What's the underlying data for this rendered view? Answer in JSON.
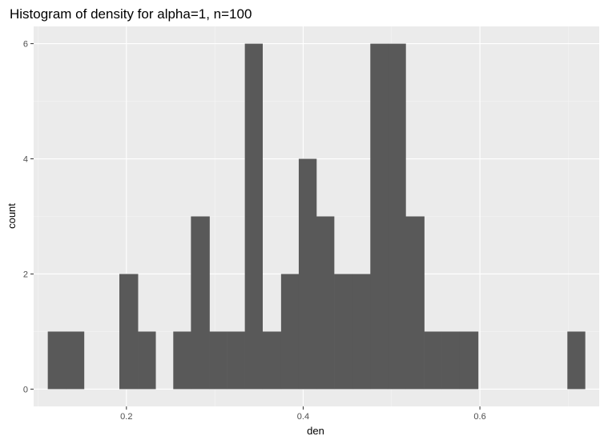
{
  "chart_data": {
    "type": "bar",
    "title": "Histogram of density for alpha=1, n=100",
    "xlabel": "den",
    "ylabel": "count",
    "xlim": [
      0.095,
      0.735
    ],
    "ylim": [
      -0.3,
      6.3
    ],
    "x_ticks": [
      0.2,
      0.4,
      0.6
    ],
    "x_tick_labels": [
      "0.2",
      "0.4",
      "0.6"
    ],
    "y_ticks": [
      0,
      2,
      4,
      6
    ],
    "y_tick_labels": [
      "0",
      "2",
      "4",
      "6"
    ],
    "grid": true,
    "bins": [
      {
        "x0": 0.111,
        "x1": 0.132,
        "count": 1
      },
      {
        "x0": 0.132,
        "x1": 0.152,
        "count": 1
      },
      {
        "x0": 0.152,
        "x1": 0.172,
        "count": 0
      },
      {
        "x0": 0.172,
        "x1": 0.192,
        "count": 0
      },
      {
        "x0": 0.192,
        "x1": 0.213,
        "count": 2
      },
      {
        "x0": 0.213,
        "x1": 0.233,
        "count": 1
      },
      {
        "x0": 0.233,
        "x1": 0.253,
        "count": 0
      },
      {
        "x0": 0.253,
        "x1": 0.273,
        "count": 1
      },
      {
        "x0": 0.273,
        "x1": 0.294,
        "count": 3
      },
      {
        "x0": 0.294,
        "x1": 0.314,
        "count": 1
      },
      {
        "x0": 0.314,
        "x1": 0.334,
        "count": 1
      },
      {
        "x0": 0.334,
        "x1": 0.354,
        "count": 6
      },
      {
        "x0": 0.354,
        "x1": 0.375,
        "count": 1
      },
      {
        "x0": 0.375,
        "x1": 0.395,
        "count": 2
      },
      {
        "x0": 0.395,
        "x1": 0.415,
        "count": 4
      },
      {
        "x0": 0.415,
        "x1": 0.435,
        "count": 3
      },
      {
        "x0": 0.435,
        "x1": 0.456,
        "count": 2
      },
      {
        "x0": 0.456,
        "x1": 0.476,
        "count": 2
      },
      {
        "x0": 0.476,
        "x1": 0.496,
        "count": 6
      },
      {
        "x0": 0.496,
        "x1": 0.516,
        "count": 6
      },
      {
        "x0": 0.516,
        "x1": 0.537,
        "count": 3
      },
      {
        "x0": 0.537,
        "x1": 0.557,
        "count": 1
      },
      {
        "x0": 0.557,
        "x1": 0.577,
        "count": 1
      },
      {
        "x0": 0.577,
        "x1": 0.598,
        "count": 1
      },
      {
        "x0": 0.598,
        "x1": 0.618,
        "count": 0
      },
      {
        "x0": 0.618,
        "x1": 0.638,
        "count": 0
      },
      {
        "x0": 0.638,
        "x1": 0.658,
        "count": 0
      },
      {
        "x0": 0.658,
        "x1": 0.679,
        "count": 0
      },
      {
        "x0": 0.679,
        "x1": 0.699,
        "count": 0
      },
      {
        "x0": 0.699,
        "x1": 0.719,
        "count": 1
      }
    ],
    "colors": {
      "bar": "#595959",
      "panel_background": "#ebebeb",
      "grid_major": "#ffffff",
      "grid_minor": "#f5f5f5",
      "tick_label": "#4d4d4d"
    }
  }
}
